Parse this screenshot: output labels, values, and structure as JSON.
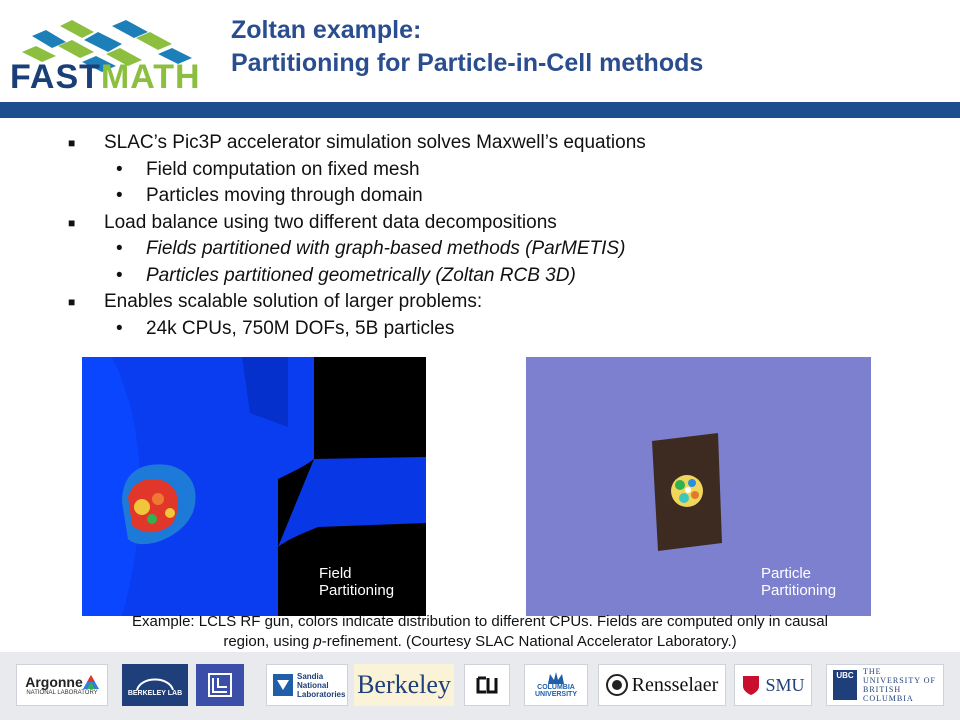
{
  "header": {
    "logo_text_a": "FAST",
    "logo_text_b": "MATH",
    "title_line1": "Zoltan example:",
    "title_line2": "Partitioning for Particle-in-Cell methods"
  },
  "bullets": [
    {
      "text": "SLAC’s Pic3P accelerator simulation solves Maxwell’s equations"
    },
    {
      "text": "Field computation on fixed mesh"
    },
    {
      "text": "Particles moving through domain"
    },
    {
      "text": "Load balance using two different data decompositions"
    },
    {
      "text": "Fields partitioned with graph-based methods (ParMETIS)"
    },
    {
      "text": "Particles partitioned geometrically (Zoltan RCB 3D)"
    },
    {
      "text": "Enables scalable solution of larger problems:"
    },
    {
      "text": "24k CPUs, 750M DOFs, 5B particles"
    }
  ],
  "figures": {
    "field_label_1": "Field",
    "field_label_2": "Partitioning",
    "particle_label_1": "Particle",
    "particle_label_2": "Partitioning"
  },
  "caption": {
    "line1": "Example: LCLS RF gun, colors indicate distribution to different CPUs. Fields are computed only in causal",
    "line2_a": "region, using ",
    "line2_em": "p",
    "line2_b": "-refinement.  (Courtesy SLAC National Accelerator Laboratory.)"
  },
  "footer_logos": {
    "argonne": "Argonne",
    "argonne_sub": "NATIONAL LABORATORY",
    "berkeley_lab": "BERKELEY LAB",
    "sandia_1": "Sandia",
    "sandia_2": "National",
    "sandia_3": "Laboratories",
    "berkeley": "Berkeley",
    "columbia_1": "COLUMBIA",
    "columbia_2": "UNIVERSITY",
    "rensselaer": "Rensselaer",
    "smu": "SMU",
    "ubc_badge": "UBC",
    "ubc_1": "THE",
    "ubc_2": "UNIVERSITY OF",
    "ubc_3": "BRITISH",
    "ubc_4": "COLUMBIA"
  },
  "colors": {
    "title": "#2a4d8f",
    "bar": "#1d4e8e",
    "field_bg": "#000000",
    "field_domain": "#0a3cf0",
    "particle_bg": "#7c80cf"
  }
}
